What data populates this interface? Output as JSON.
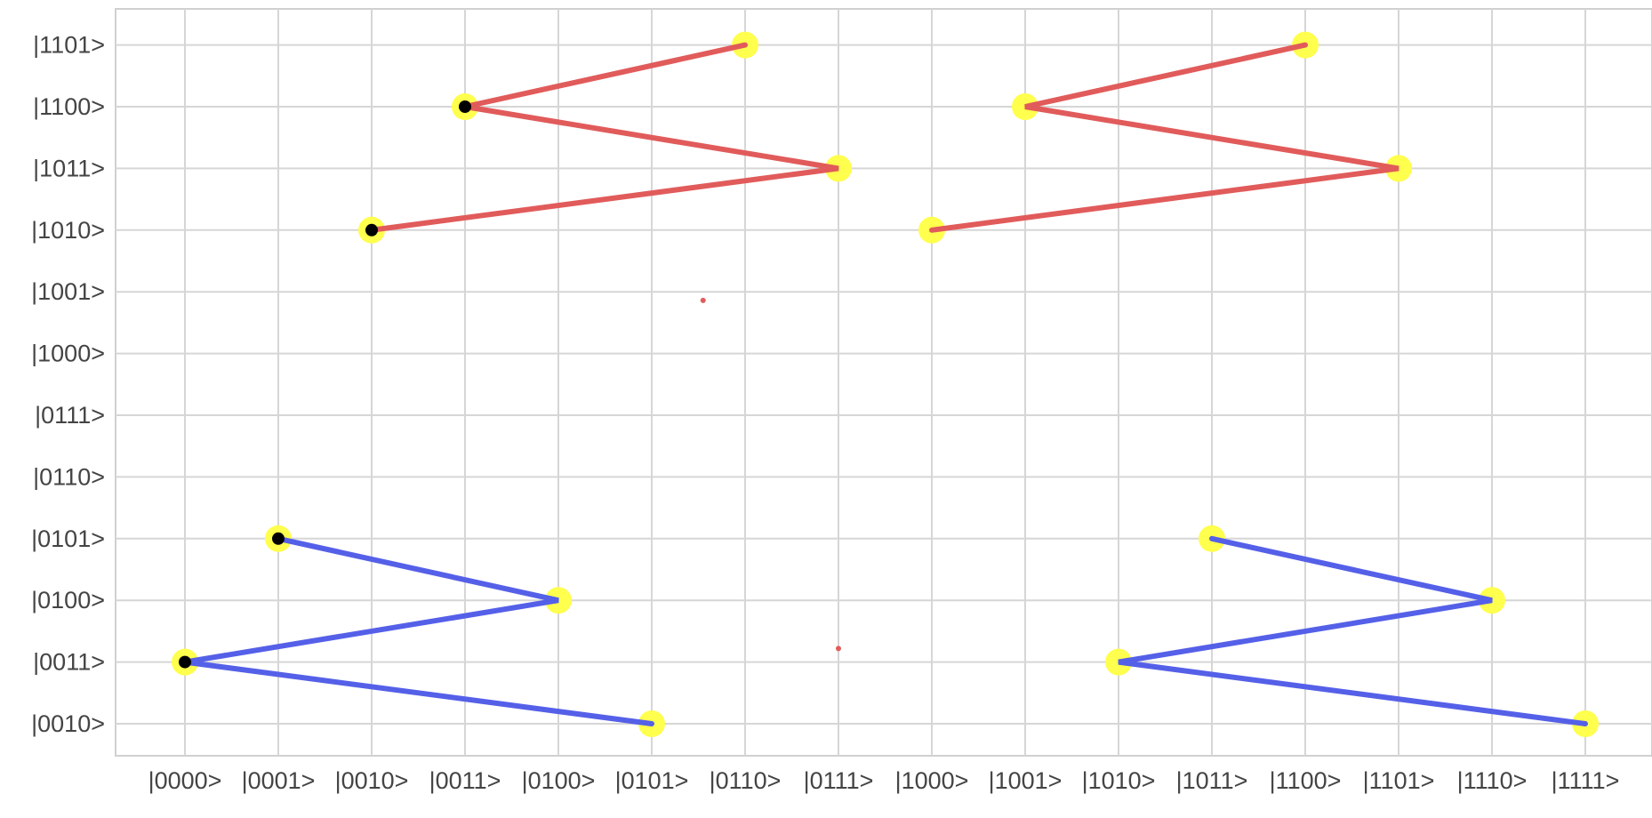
{
  "chart_data": {
    "type": "scatter",
    "title": "",
    "xlabel": "",
    "ylabel": "",
    "grid": true,
    "x_categories": [
      "|0000>",
      "|0001>",
      "|0010>",
      "|0011>",
      "|0100>",
      "|0101>",
      "|0110>",
      "|0111>",
      "|1000>",
      "|1001>",
      "|1010>",
      "|1011>",
      "|1100>",
      "|1101>",
      "|1110>",
      "|1111>"
    ],
    "y_categories": [
      "|0010>",
      "|0011>",
      "|0100>",
      "|0101>",
      "|0110>",
      "|0111>",
      "|1000>",
      "|1001>",
      "|1010>",
      "|1011>",
      "|1100>",
      "|1101>"
    ],
    "paths": [
      {
        "color": "#e15b5b",
        "points": [
          [
            "|0110>",
            "|1101>"
          ],
          [
            "|0011>",
            "|1100>"
          ],
          [
            "|0111>",
            "|1011>"
          ],
          [
            "|0010>",
            "|1010>"
          ]
        ]
      },
      {
        "color": "#e15b5b",
        "points": [
          [
            "|1100>",
            "|1101>"
          ],
          [
            "|1001>",
            "|1100>"
          ],
          [
            "|1101>",
            "|1011>"
          ],
          [
            "|1000>",
            "|1010>"
          ]
        ]
      },
      {
        "color": "#5560e8",
        "points": [
          [
            "|0001>",
            "|0101>"
          ],
          [
            "|0100>",
            "|0100>"
          ],
          [
            "|0000>",
            "|0011>"
          ],
          [
            "|0101>",
            "|0010>"
          ]
        ]
      },
      {
        "color": "#5560e8",
        "points": [
          [
            "|1011>",
            "|0101>"
          ],
          [
            "|1110>",
            "|0100>"
          ],
          [
            "|1010>",
            "|0011>"
          ],
          [
            "|1111>",
            "|0010>"
          ]
        ]
      }
    ],
    "highlights": [
      [
        "|0110>",
        "|1101>"
      ],
      [
        "|0011>",
        "|1100>"
      ],
      [
        "|0111>",
        "|1011>"
      ],
      [
        "|0010>",
        "|1010>"
      ],
      [
        "|1100>",
        "|1101>"
      ],
      [
        "|1001>",
        "|1100>"
      ],
      [
        "|1101>",
        "|1011>"
      ],
      [
        "|1000>",
        "|1010>"
      ],
      [
        "|0001>",
        "|0101>"
      ],
      [
        "|0100>",
        "|0100>"
      ],
      [
        "|0000>",
        "|0011>"
      ],
      [
        "|0101>",
        "|0010>"
      ],
      [
        "|1011>",
        "|0101>"
      ],
      [
        "|1110>",
        "|0100>"
      ],
      [
        "|1010>",
        "|0011>"
      ],
      [
        "|1111>",
        "|0010>"
      ]
    ],
    "black_markers": [
      [
        "|0011>",
        "|1100>"
      ],
      [
        "|0010>",
        "|1010>"
      ],
      [
        "|0001>",
        "|0101>"
      ],
      [
        "|0000>",
        "|0011>"
      ]
    ],
    "stray_dots": [
      {
        "x": 5.55,
        "y": 6.86,
        "color": "#e15b5b"
      },
      {
        "x": 7.0,
        "y": 1.22,
        "color": "#e15b5b"
      }
    ],
    "highlight_color": "#ffff4d",
    "marker_color": "#000000"
  }
}
